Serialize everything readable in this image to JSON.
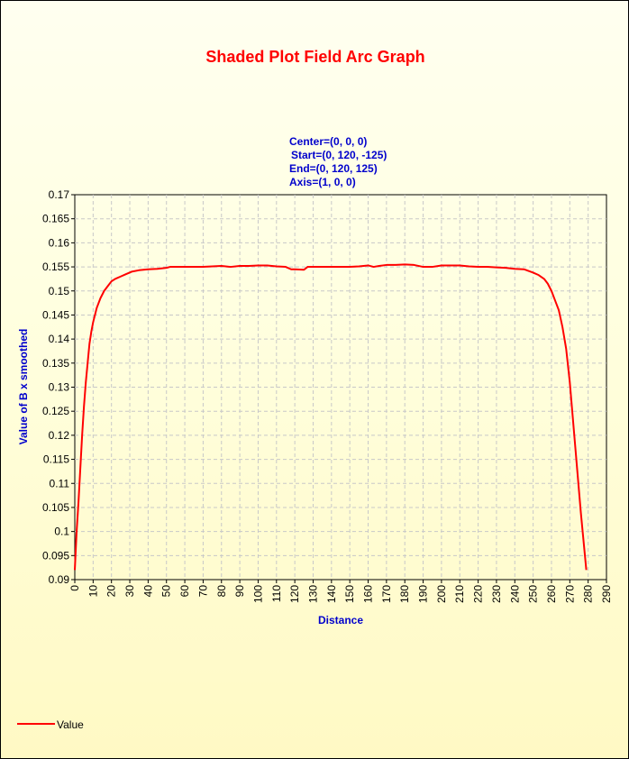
{
  "chart_data": {
    "type": "line",
    "title": "Shaded Plot Field Arc Graph",
    "subtitle_lines": [
      "Center=(0, 0, 0)",
      "Start=(0, 120, -125)",
      "End=(0, 120, 125)",
      "Axis=(1, 0, 0)"
    ],
    "xlabel": "Distance",
    "ylabel": "Value of B x smoothed",
    "xlim": [
      0,
      290
    ],
    "ylim": [
      0.09,
      0.17
    ],
    "xticks": [
      0,
      10,
      20,
      30,
      40,
      50,
      60,
      70,
      80,
      90,
      100,
      110,
      120,
      130,
      140,
      150,
      160,
      170,
      180,
      190,
      200,
      210,
      220,
      230,
      240,
      250,
      260,
      270,
      280,
      290
    ],
    "yticks": [
      "0.09",
      "0.095",
      "0.1",
      "0.105",
      "0.11",
      "0.115",
      "0.12",
      "0.125",
      "0.13",
      "0.135",
      "0.14",
      "0.145",
      "0.15",
      "0.155",
      "0.16",
      "0.165",
      "0.17"
    ],
    "grid": true,
    "legend": "bottom-left",
    "series": [
      {
        "name": "Value",
        "color": "#ff0000",
        "x": [
          0,
          1,
          2,
          3,
          4,
          5,
          6,
          7,
          8,
          9,
          10,
          12,
          14,
          16,
          18,
          20,
          22,
          25,
          28,
          31,
          35,
          40,
          45,
          50,
          52,
          55,
          60,
          70,
          75,
          80,
          85,
          90,
          95,
          100,
          105,
          110,
          115,
          118,
          120,
          125,
          127,
          130,
          140,
          150,
          155,
          160,
          163,
          166,
          170,
          175,
          180,
          185,
          190,
          195,
          200,
          205,
          210,
          215,
          220,
          225,
          230,
          235,
          240,
          245,
          250,
          253,
          256,
          258,
          260,
          262,
          264,
          266,
          268,
          270,
          272,
          274,
          276,
          278,
          279
        ],
        "values": [
          0.092,
          0.1,
          0.106,
          0.113,
          0.12,
          0.126,
          0.131,
          0.135,
          0.139,
          0.1415,
          0.1435,
          0.1465,
          0.1485,
          0.15,
          0.151,
          0.152,
          0.1525,
          0.153,
          0.1535,
          0.154,
          0.1543,
          0.1545,
          0.1546,
          0.1548,
          0.155,
          0.155,
          0.155,
          0.155,
          0.1551,
          0.1552,
          0.155,
          0.1552,
          0.1552,
          0.1553,
          0.1553,
          0.1551,
          0.155,
          0.1545,
          0.1545,
          0.1544,
          0.155,
          0.155,
          0.155,
          0.155,
          0.1551,
          0.1553,
          0.155,
          0.1552,
          0.1554,
          0.1554,
          0.1555,
          0.1554,
          0.155,
          0.155,
          0.1553,
          0.1553,
          0.1553,
          0.1551,
          0.155,
          0.155,
          0.1549,
          0.1548,
          0.1546,
          0.1545,
          0.1538,
          0.1533,
          0.1525,
          0.1515,
          0.15,
          0.148,
          0.146,
          0.1425,
          0.138,
          0.131,
          0.122,
          0.113,
          0.104,
          0.096,
          0.092
        ]
      }
    ]
  }
}
